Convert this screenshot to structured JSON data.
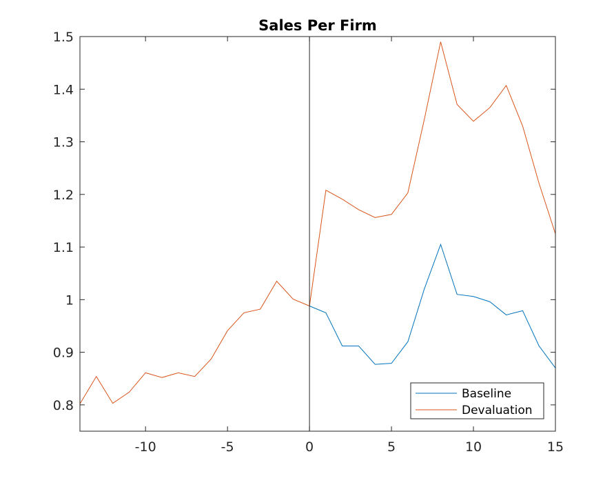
{
  "chart_data": {
    "type": "line",
    "title": "Sales Per Firm",
    "xlabel": "",
    "ylabel": "",
    "xlim": [
      -14,
      15
    ],
    "ylim": [
      0.75,
      1.5
    ],
    "xticks": [
      -10,
      -5,
      0,
      5,
      10,
      15
    ],
    "yticks": [
      0.8,
      0.9,
      1,
      1.1,
      1.2,
      1.3,
      1.4,
      1.5
    ],
    "xtick_labels": [
      "-10",
      "-5",
      "0",
      "5",
      "10",
      "15"
    ],
    "ytick_labels": [
      "0.8",
      "0.9",
      "1",
      "1.1",
      "1.2",
      "1.3",
      "1.4",
      "1.5"
    ],
    "vline_x": 0,
    "grid": false,
    "legend_position": "bottom-right",
    "series": [
      {
        "name": "Baseline",
        "color": "#0072BD",
        "x": [
          0,
          1,
          2,
          3,
          4,
          5,
          6,
          7,
          8,
          9,
          10,
          11,
          12,
          13,
          14,
          15
        ],
        "values": [
          0.988,
          0.975,
          0.912,
          0.912,
          0.877,
          0.879,
          0.92,
          1.02,
          1.105,
          1.01,
          1.006,
          0.996,
          0.971,
          0.979,
          0.912,
          0.87
        ]
      },
      {
        "name": "Devaluation",
        "color": "#D95319",
        "x": [
          -14,
          -13,
          -12,
          -11,
          -10,
          -9,
          -8,
          -7,
          -6,
          -5,
          -4,
          -3,
          -2,
          -1,
          0,
          1,
          2,
          3,
          4,
          5,
          6,
          7,
          8,
          9,
          10,
          11,
          12,
          13,
          14,
          15
        ],
        "values": [
          0.802,
          0.854,
          0.803,
          0.824,
          0.861,
          0.852,
          0.861,
          0.854,
          0.887,
          0.941,
          0.975,
          0.982,
          1.035,
          1.001,
          0.988,
          1.208,
          1.191,
          1.171,
          1.156,
          1.162,
          1.203,
          1.342,
          1.49,
          1.371,
          1.339,
          1.365,
          1.407,
          1.33,
          1.221,
          1.125
        ]
      }
    ]
  }
}
